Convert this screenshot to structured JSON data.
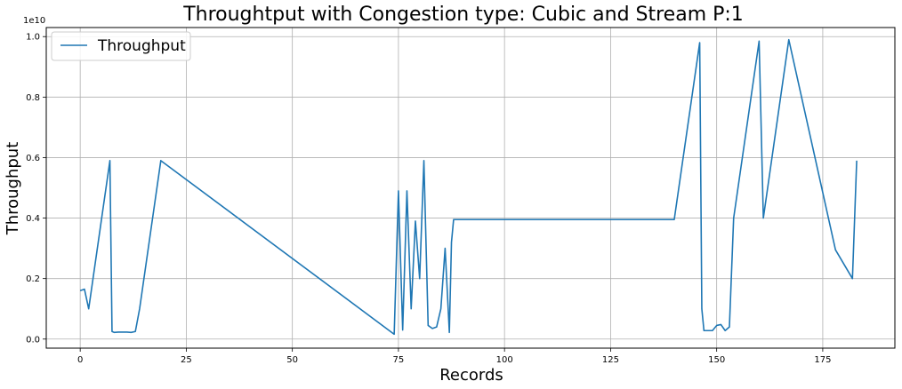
{
  "chart_data": {
    "type": "line",
    "title": "Throughtput with Congestion type: Cubic and Stream P:1",
    "xlabel": "Records",
    "ylabel": "Throughput",
    "y_offset_label": "1e10",
    "xlim": [
      -8,
      192
    ],
    "ylim": [
      -0.03,
      1.03
    ],
    "x_ticks": [
      0,
      25,
      50,
      75,
      100,
      125,
      150,
      175
    ],
    "x_tick_labels": [
      "0",
      "25",
      "50",
      "75",
      "100",
      "125",
      "150",
      "175"
    ],
    "y_ticks": [
      0.0,
      0.2,
      0.4,
      0.6,
      0.8,
      1.0
    ],
    "y_tick_labels": [
      "0.0",
      "0.2",
      "0.4",
      "0.6",
      "0.8",
      "1.0"
    ],
    "grid": true,
    "legend": {
      "position": "top-left",
      "entries": [
        "Throughput"
      ]
    },
    "series": [
      {
        "name": "Throughput",
        "color": "#1f77b4",
        "x": [
          0,
          1,
          2,
          7,
          7.5,
          8,
          9,
          10,
          11,
          12,
          13,
          14,
          19,
          74,
          75,
          76,
          77,
          78,
          79,
          80,
          81,
          82,
          83,
          84,
          85,
          86,
          87,
          87.5,
          88,
          140,
          146,
          146.5,
          147,
          148,
          149,
          150,
          151,
          152,
          153,
          154,
          160,
          161,
          167,
          178,
          182,
          183
        ],
        "y": [
          0.16,
          0.165,
          0.1,
          0.59,
          0.025,
          0.022,
          0.023,
          0.023,
          0.023,
          0.022,
          0.025,
          0.1,
          0.59,
          0.016,
          0.49,
          0.03,
          0.49,
          0.1,
          0.39,
          0.2,
          0.59,
          0.045,
          0.035,
          0.04,
          0.1,
          0.3,
          0.022,
          0.32,
          0.395,
          0.395,
          0.98,
          0.1,
          0.028,
          0.028,
          0.028,
          0.045,
          0.048,
          0.028,
          0.04,
          0.4,
          0.985,
          0.4,
          0.99,
          0.295,
          0.2,
          0.59
        ]
      }
    ]
  }
}
